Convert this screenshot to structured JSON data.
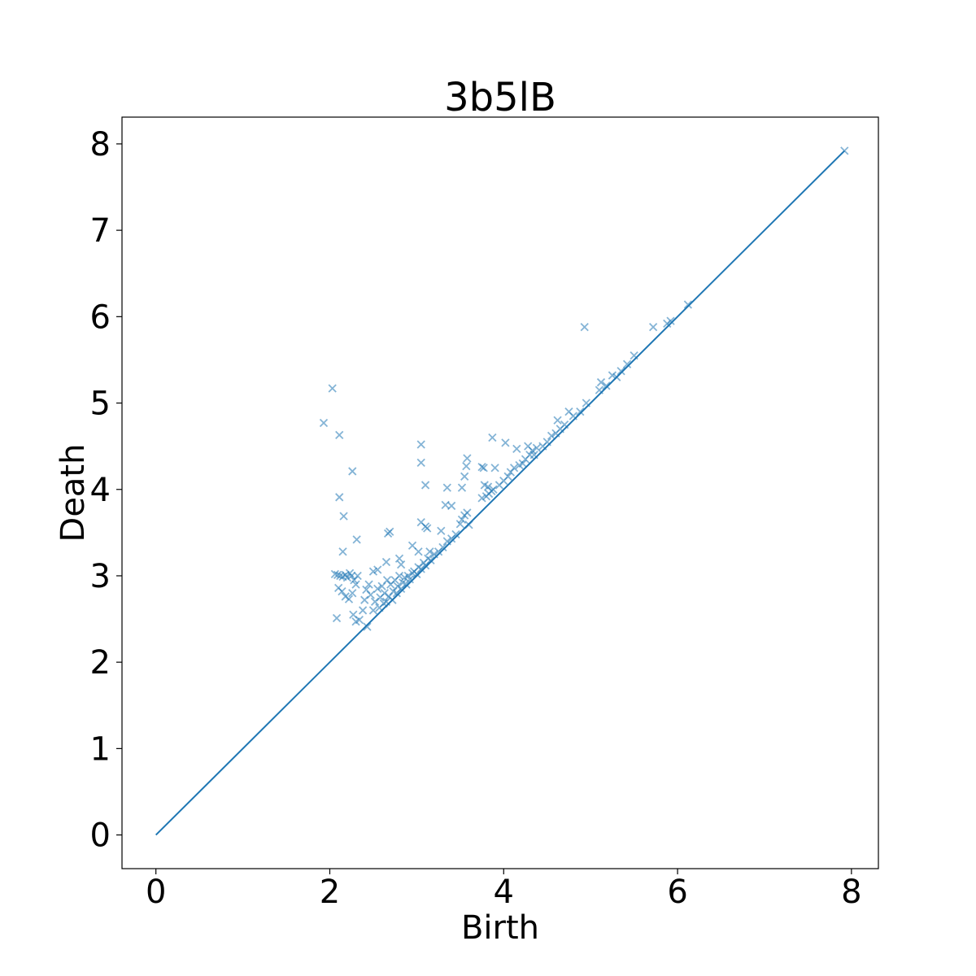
{
  "chart_data": {
    "type": "scatter",
    "title": "3b5lB",
    "xlabel": "Birth",
    "ylabel": "Death",
    "xlim": [
      -0.39,
      8.31
    ],
    "ylim": [
      -0.39,
      8.31
    ],
    "xticks": [
      0,
      2,
      4,
      6,
      8
    ],
    "yticks": [
      0,
      1,
      2,
      3,
      4,
      5,
      6,
      7,
      8
    ],
    "grid": false,
    "marker": "x",
    "color": "#1f77b4",
    "diagonal": {
      "from": [
        0,
        0
      ],
      "to": [
        7.92,
        7.92
      ]
    },
    "series": [
      {
        "points": [
          [
            1.93,
            4.77
          ],
          [
            2.03,
            5.17
          ],
          [
            2.11,
            4.63
          ],
          [
            2.26,
            4.21
          ],
          [
            2.11,
            3.91
          ],
          [
            2.16,
            3.69
          ],
          [
            2.31,
            3.42
          ],
          [
            2.15,
            3.28
          ],
          [
            2.06,
            3.02
          ],
          [
            2.09,
            3.01
          ],
          [
            2.12,
            3.0
          ],
          [
            2.15,
            2.99
          ],
          [
            2.18,
            3.01
          ],
          [
            2.2,
            2.98
          ],
          [
            2.23,
            3.03
          ],
          [
            2.25,
            3.0
          ],
          [
            2.28,
            2.95
          ],
          [
            2.3,
            2.9
          ],
          [
            2.32,
            3.0
          ],
          [
            2.1,
            2.86
          ],
          [
            2.14,
            2.82
          ],
          [
            2.18,
            2.76
          ],
          [
            2.22,
            2.73
          ],
          [
            2.26,
            2.8
          ],
          [
            2.08,
            2.51
          ],
          [
            2.27,
            2.55
          ],
          [
            2.3,
            2.47
          ],
          [
            2.34,
            2.49
          ],
          [
            2.43,
            2.41
          ],
          [
            2.38,
            2.6
          ],
          [
            2.4,
            2.72
          ],
          [
            2.42,
            2.84
          ],
          [
            2.45,
            2.9
          ],
          [
            2.47,
            2.78
          ],
          [
            2.5,
            3.05
          ],
          [
            2.5,
            2.6
          ],
          [
            2.52,
            2.7
          ],
          [
            2.55,
            2.85
          ],
          [
            2.57,
            2.63
          ],
          [
            2.58,
            2.75
          ],
          [
            2.6,
            2.88
          ],
          [
            2.62,
            2.68
          ],
          [
            2.63,
            2.8
          ],
          [
            2.65,
            2.7
          ],
          [
            2.66,
            2.95
          ],
          [
            2.68,
            2.76
          ],
          [
            2.7,
            2.9
          ],
          [
            2.72,
            2.72
          ],
          [
            2.73,
            2.82
          ],
          [
            2.75,
            2.95
          ],
          [
            2.77,
            2.8
          ],
          [
            2.78,
            2.88
          ],
          [
            2.8,
            3.0
          ],
          [
            2.82,
            2.85
          ],
          [
            2.84,
            2.92
          ],
          [
            2.86,
            2.98
          ],
          [
            2.88,
            2.9
          ],
          [
            2.9,
            3.0
          ],
          [
            2.92,
            2.96
          ],
          [
            2.95,
            3.03
          ],
          [
            2.97,
            3.05
          ],
          [
            3.0,
            3.02
          ],
          [
            3.02,
            3.1
          ],
          [
            3.05,
            3.08
          ],
          [
            3.08,
            3.15
          ],
          [
            3.1,
            3.12
          ],
          [
            3.13,
            3.2
          ],
          [
            3.16,
            3.18
          ],
          [
            3.2,
            3.25
          ],
          [
            3.25,
            3.28
          ],
          [
            3.3,
            3.33
          ],
          [
            3.35,
            3.4
          ],
          [
            3.4,
            3.43
          ],
          [
            3.45,
            3.48
          ],
          [
            2.55,
            3.07
          ],
          [
            2.65,
            3.16
          ],
          [
            2.8,
            3.2
          ],
          [
            2.82,
            3.13
          ],
          [
            2.67,
            3.49
          ],
          [
            2.69,
            3.51
          ],
          [
            2.95,
            3.35
          ],
          [
            3.02,
            3.28
          ],
          [
            3.05,
            3.62
          ],
          [
            3.1,
            3.57
          ],
          [
            3.12,
            3.55
          ],
          [
            3.15,
            3.28
          ],
          [
            3.05,
            4.52
          ],
          [
            3.05,
            4.31
          ],
          [
            3.1,
            4.05
          ],
          [
            3.35,
            4.02
          ],
          [
            3.33,
            3.82
          ],
          [
            3.4,
            3.81
          ],
          [
            3.28,
            3.52
          ],
          [
            3.5,
            3.6
          ],
          [
            3.52,
            3.65
          ],
          [
            3.55,
            3.7
          ],
          [
            3.58,
            3.73
          ],
          [
            3.6,
            3.59
          ],
          [
            3.52,
            4.02
          ],
          [
            3.55,
            4.15
          ],
          [
            3.57,
            4.27
          ],
          [
            3.58,
            4.36
          ],
          [
            3.75,
            4.26
          ],
          [
            3.77,
            4.25
          ],
          [
            3.78,
            4.05
          ],
          [
            3.82,
            4.03
          ],
          [
            3.75,
            3.9
          ],
          [
            3.8,
            3.92
          ],
          [
            3.83,
            3.95
          ],
          [
            3.86,
            3.98
          ],
          [
            3.88,
            4.0
          ],
          [
            3.9,
            4.25
          ],
          [
            3.87,
            4.6
          ],
          [
            4.02,
            4.54
          ],
          [
            3.95,
            4.05
          ],
          [
            4.0,
            4.1
          ],
          [
            4.05,
            4.15
          ],
          [
            4.08,
            4.2
          ],
          [
            4.12,
            4.25
          ],
          [
            4.15,
            4.47
          ],
          [
            4.18,
            4.28
          ],
          [
            4.22,
            4.3
          ],
          [
            4.25,
            4.35
          ],
          [
            4.28,
            4.5
          ],
          [
            4.3,
            4.4
          ],
          [
            4.33,
            4.45
          ],
          [
            4.35,
            4.4
          ],
          [
            4.38,
            4.48
          ],
          [
            4.45,
            4.5
          ],
          [
            4.5,
            4.55
          ],
          [
            4.55,
            4.62
          ],
          [
            4.6,
            4.65
          ],
          [
            4.62,
            4.8
          ],
          [
            4.65,
            4.7
          ],
          [
            4.7,
            4.75
          ],
          [
            4.75,
            4.9
          ],
          [
            4.8,
            4.85
          ],
          [
            4.88,
            4.9
          ],
          [
            4.95,
            5.0
          ],
          [
            4.93,
            5.88
          ],
          [
            5.1,
            5.15
          ],
          [
            5.12,
            5.24
          ],
          [
            5.18,
            5.2
          ],
          [
            5.25,
            5.32
          ],
          [
            5.3,
            5.3
          ],
          [
            5.35,
            5.37
          ],
          [
            5.42,
            5.45
          ],
          [
            5.5,
            5.55
          ],
          [
            5.72,
            5.88
          ],
          [
            5.88,
            5.92
          ],
          [
            5.92,
            5.95
          ],
          [
            6.12,
            6.14
          ],
          [
            7.92,
            7.92
          ]
        ]
      }
    ]
  }
}
